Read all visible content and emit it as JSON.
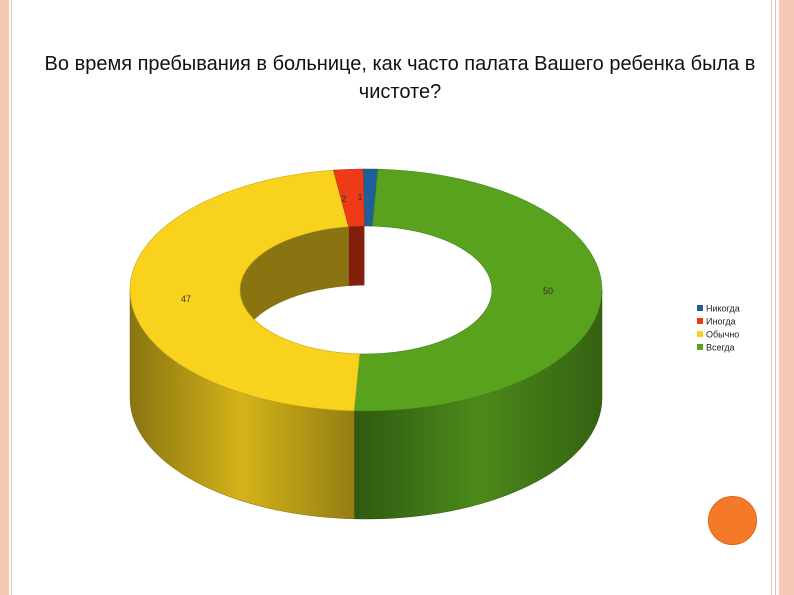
{
  "title": "Во время пребывания в больнице, как часто палата Вашего ребенка была в чистоте?",
  "chart_data": {
    "type": "pie",
    "style": "3d-doughnut",
    "title": "Во время пребывания в больнице, как часто палата Вашего ребенка была в чистоте?",
    "categories": [
      "Никогда",
      "Иногда",
      "Обычно",
      "Всегда"
    ],
    "values": [
      1,
      2,
      47,
      50
    ],
    "data_labels": [
      "1",
      "2",
      "47",
      "50"
    ],
    "colors": [
      "#1f5f9a",
      "#ee3a16",
      "#f9d21e",
      "#58a21e"
    ],
    "legend_position": "right"
  }
}
